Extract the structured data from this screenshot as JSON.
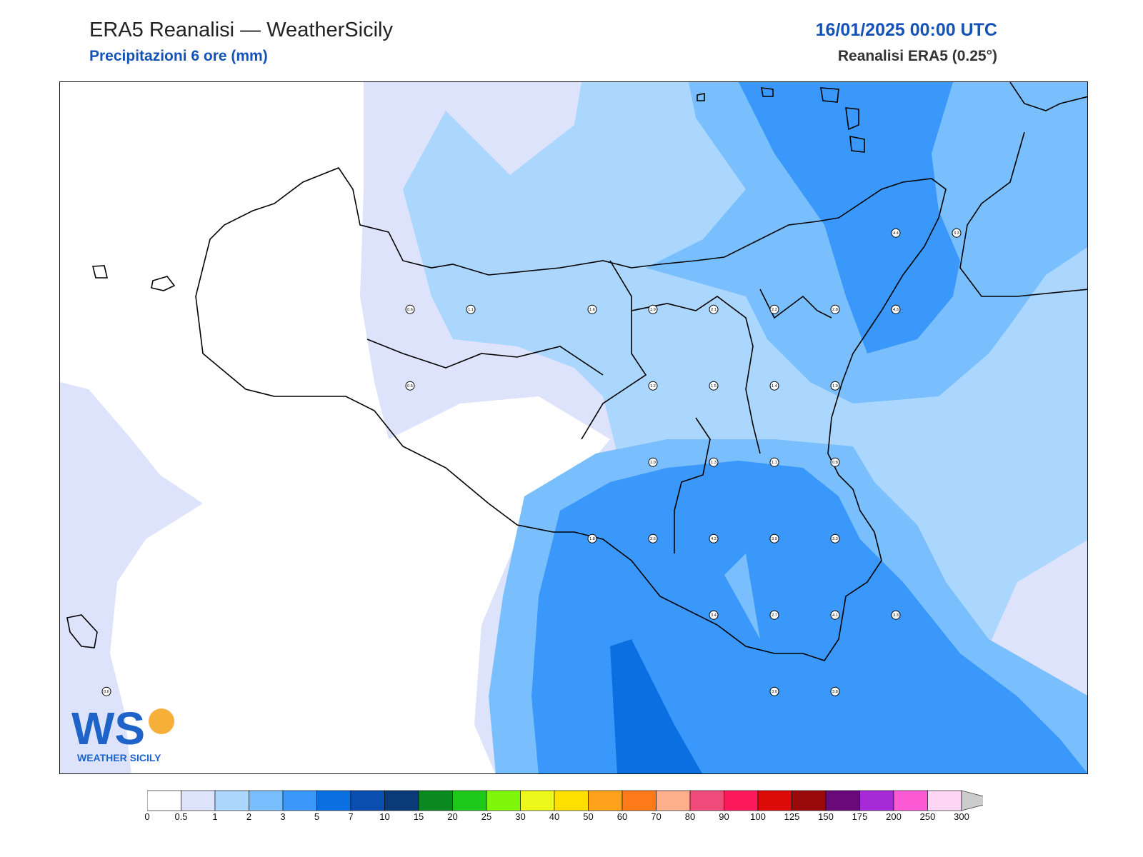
{
  "header": {
    "title": "ERA5 Reanalisi — WeatherSicily",
    "subtitle": "Precipitazioni 6 ore (mm)",
    "datetime": "16/01/2025 00:00 UTC",
    "source": "Reanalisi ERA5 (0.25°)"
  },
  "logo": {
    "text": "WS",
    "caption": "WEATHER SICILY",
    "colors": [
      "#1e63c8",
      "#f5a623"
    ]
  },
  "colorbar": {
    "ticks": [
      "0",
      "0.5",
      "1",
      "2",
      "3",
      "5",
      "7",
      "10",
      "15",
      "20",
      "25",
      "30",
      "40",
      "50",
      "60",
      "70",
      "80",
      "90",
      "100",
      "125",
      "150",
      "175",
      "200",
      "250",
      "300"
    ],
    "colors": [
      "#ffffff",
      "#dde3fb",
      "#abd6fd",
      "#7abffd",
      "#3a98fb",
      "#0a6fe0",
      "#0a4fb0",
      "#0a3a78",
      "#0a8a1e",
      "#1dc81a",
      "#7ef70a",
      "#eef71a",
      "#fde000",
      "#fda21a",
      "#fd7a1a",
      "#fdae8a",
      "#ee4a7a",
      "#fd1a5a",
      "#dd0a0a",
      "#9a0a0a",
      "#6a0a7a",
      "#a62ad6",
      "#fd5ad6",
      "#fdd6f6"
    ],
    "extend_color": "#cccccc"
  },
  "stations": [
    {
      "v": "0.6",
      "c": 0.4,
      "r": 0.6
    },
    {
      "v": "1.1",
      "c": 1.4,
      "r": 0.6
    },
    {
      "v": "1.6",
      "c": 3.4,
      "r": 0.6
    },
    {
      "v": "1.9",
      "c": 4.4,
      "r": 0.6
    },
    {
      "v": "2.1",
      "c": 5.4,
      "r": 0.6
    },
    {
      "v": "2.2",
      "c": 6.4,
      "r": 0.6
    },
    {
      "v": "2.8",
      "c": 7.4,
      "r": 0.6
    },
    {
      "v": "4.3",
      "c": 8.4,
      "r": 0.6
    },
    {
      "v": "4.4",
      "c": 8.4,
      "r": -0.4
    },
    {
      "v": "3.3",
      "c": 9.4,
      "r": -0.4
    },
    {
      "v": "0.6",
      "c": 0.4,
      "r": 1.6
    },
    {
      "v": "1.2",
      "c": 4.4,
      "r": 1.6
    },
    {
      "v": "1.5",
      "c": 5.4,
      "r": 1.6
    },
    {
      "v": "1.4",
      "c": 6.4,
      "r": 1.6
    },
    {
      "v": "1.0",
      "c": 7.4,
      "r": 1.6
    },
    {
      "v": "1.0",
      "c": 4.4,
      "r": 2.6
    },
    {
      "v": "1.3",
      "c": 5.4,
      "r": 2.6
    },
    {
      "v": "1.1",
      "c": 6.4,
      "r": 2.6
    },
    {
      "v": "0.8",
      "c": 7.4,
      "r": 2.6
    },
    {
      "v": "1.8",
      "c": 3.4,
      "r": 3.6
    },
    {
      "v": "3.6",
      "c": 4.4,
      "r": 3.6
    },
    {
      "v": "4.2",
      "c": 5.4,
      "r": 3.6
    },
    {
      "v": "3.9",
      "c": 6.4,
      "r": 3.6
    },
    {
      "v": "3.3",
      "c": 7.4,
      "r": 3.6
    },
    {
      "v": "3.4",
      "c": 5.4,
      "r": 4.6
    },
    {
      "v": "2.7",
      "c": 6.4,
      "r": 4.6
    },
    {
      "v": "4.1",
      "c": 7.4,
      "r": 4.6
    },
    {
      "v": "3.3",
      "c": 8.4,
      "r": 4.6
    },
    {
      "v": "3.0",
      "c": 6.4,
      "r": 5.6
    },
    {
      "v": "3.8",
      "c": 7.4,
      "r": 5.6
    },
    {
      "v": "0.6",
      "c": -4.6,
      "r": 5.6
    }
  ]
}
